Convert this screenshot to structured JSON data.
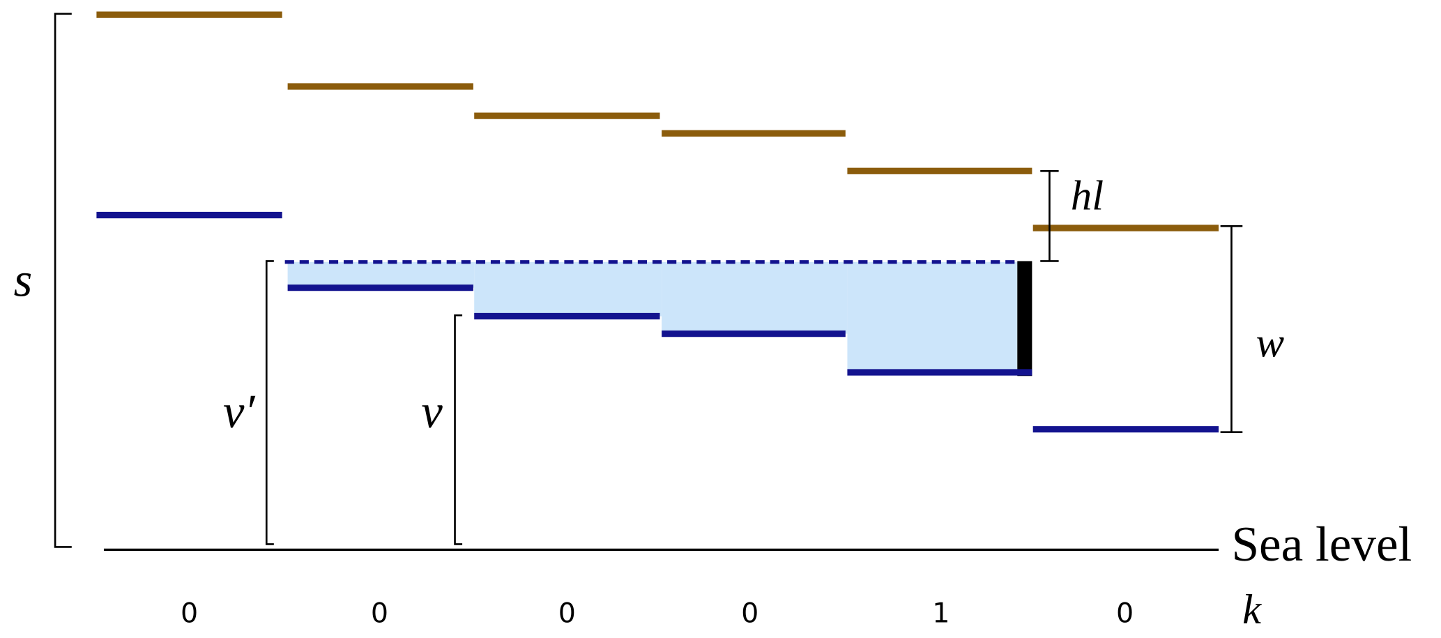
{
  "labels": {
    "s": "s",
    "hl": "hl",
    "w": "w",
    "v_prime": "v′",
    "v": "v",
    "sea_level": "Sea level",
    "k": "k⃗"
  },
  "k_values": [
    0,
    0,
    0,
    0,
    1,
    0
  ]
}
